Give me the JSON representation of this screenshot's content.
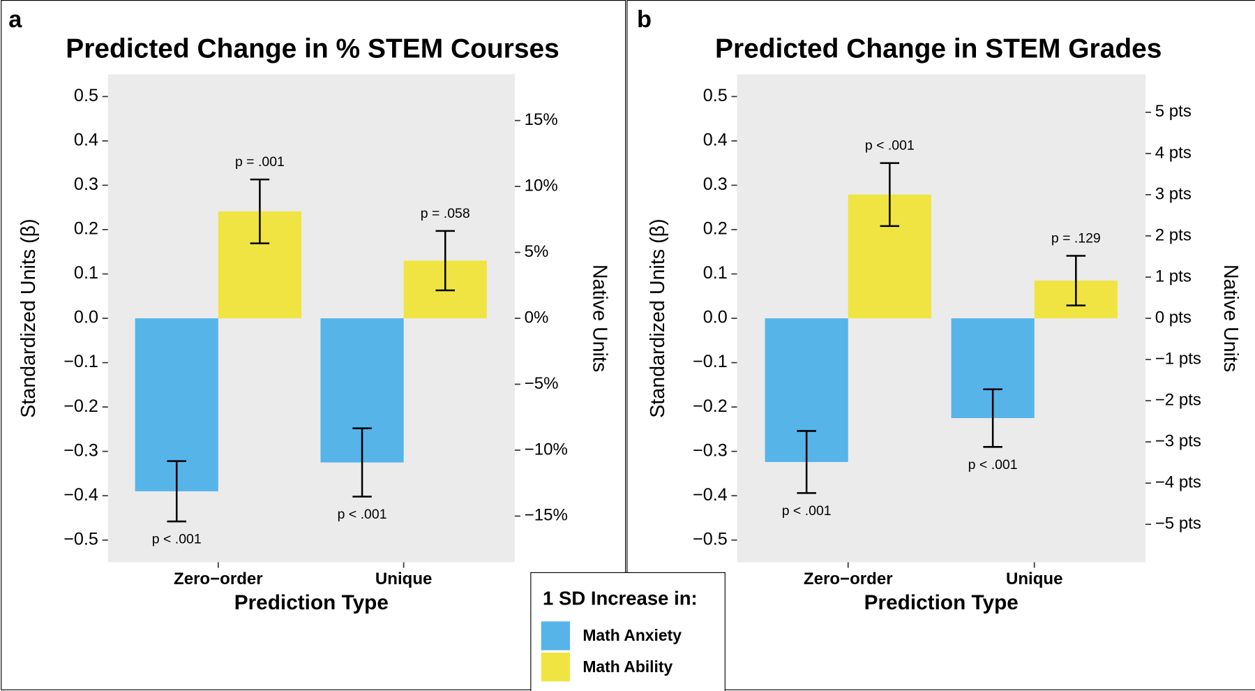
{
  "legend": {
    "title": "1 SD Increase in:"
  },
  "chart_data": [
    {
      "type": "bar",
      "panel": "a",
      "title": "Predicted Change in % STEM Courses",
      "x_label": "Prediction Type",
      "y_label": "Standardized Units (β)",
      "y2_label": "Native Units",
      "categories": [
        "Zero−order",
        "Unique"
      ],
      "series": [
        {
          "name": "Math Anxiety",
          "color": "#56B4E9",
          "values": [
            -0.39,
            -0.325
          ],
          "errors": [
            0.068,
            0.077
          ],
          "annotations": [
            "p < .001",
            "p < .001"
          ]
        },
        {
          "name": "Math Ability",
          "color": "#F0E442",
          "values": [
            0.241,
            0.13
          ],
          "errors": [
            0.072,
            0.067
          ],
          "annotations": [
            "p = .001",
            "p = .058"
          ]
        }
      ],
      "ylim": [
        -0.55,
        0.55
      ],
      "yticks": [
        {
          "value": -0.5,
          "label": "−0.5"
        },
        {
          "value": -0.4,
          "label": "−0.4"
        },
        {
          "value": -0.3,
          "label": "−0.3"
        },
        {
          "value": -0.2,
          "label": "−0.2"
        },
        {
          "value": -0.1,
          "label": "−0.1"
        },
        {
          "value": 0,
          "label": "0.0"
        },
        0.1,
        0.2,
        0.3,
        0.4,
        0.5
      ],
      "y2lim": [
        -18.5,
        18.5
      ],
      "y2ticks": [
        {
          "value": -15,
          "label": "−15%"
        },
        {
          "value": -10,
          "label": "−10%"
        },
        {
          "value": -5,
          "label": "−5%"
        },
        {
          "value": 0,
          "label": "0%"
        },
        {
          "value": 5,
          "label": "5%"
        },
        {
          "value": 10,
          "label": "10%"
        },
        {
          "value": 15,
          "label": "15%"
        }
      ]
    },
    {
      "type": "bar",
      "panel": "b",
      "title": "Predicted Change in STEM Grades",
      "x_label": "Prediction Type",
      "y_label": "Standardized Units (β)",
      "y2_label": "Native Units",
      "categories": [
        "Zero−order",
        "Unique"
      ],
      "series": [
        {
          "name": "Math Anxiety",
          "color": "#56B4E9",
          "values": [
            -0.324,
            -0.225
          ],
          "errors": [
            0.07,
            0.065
          ],
          "annotations": [
            "p < .001",
            "p < .001"
          ]
        },
        {
          "name": "Math Ability",
          "color": "#F0E442",
          "values": [
            0.279,
            0.085
          ],
          "errors": [
            0.071,
            0.056
          ],
          "annotations": [
            "p < .001",
            "p = .129"
          ]
        }
      ],
      "ylim": [
        -0.55,
        0.55
      ],
      "yticks": [
        {
          "value": -0.5,
          "label": "−0.5"
        },
        {
          "value": -0.4,
          "label": "−0.4"
        },
        {
          "value": -0.3,
          "label": "−0.3"
        },
        {
          "value": -0.2,
          "label": "−0.2"
        },
        {
          "value": -0.1,
          "label": "−0.1"
        },
        {
          "value": 0,
          "label": "0.0"
        },
        0.1,
        0.2,
        0.3,
        0.4,
        0.5
      ],
      "y2lim": [
        -5.92,
        5.92
      ],
      "y2ticks": [
        {
          "value": -5,
          "label": "−5 pts"
        },
        {
          "value": -4,
          "label": "−4 pts"
        },
        {
          "value": -3,
          "label": "−3 pts"
        },
        {
          "value": -2,
          "label": "−2 pts"
        },
        {
          "value": -1,
          "label": "−1 pts"
        },
        {
          "value": 0,
          "label": "0 pts"
        },
        {
          "value": 1,
          "label": "1 pts"
        },
        {
          "value": 2,
          "label": "2 pts"
        },
        {
          "value": 3,
          "label": "3 pts"
        },
        {
          "value": 4,
          "label": "4 pts"
        },
        {
          "value": 5,
          "label": "5 pts"
        }
      ]
    }
  ]
}
